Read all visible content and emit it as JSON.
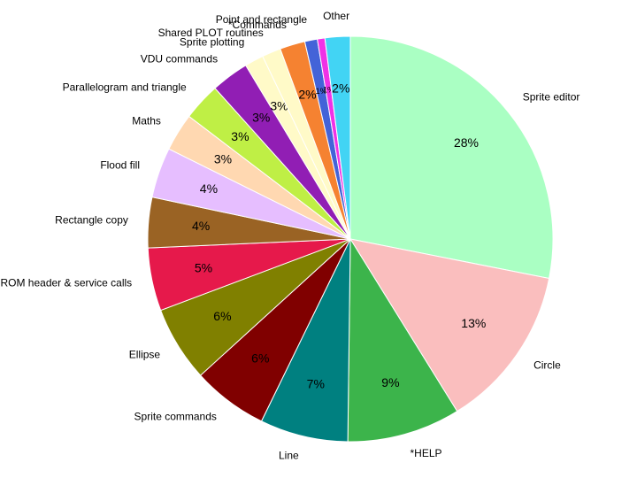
{
  "chart_data": {
    "type": "pie",
    "title": "",
    "start_angle_deg": 90,
    "direction": "clockwise",
    "slices": [
      {
        "label": "Sprite editor",
        "value": 28,
        "pct_label": "28%",
        "color": "#aaffc3"
      },
      {
        "label": "Circle",
        "value": 13,
        "pct_label": "13%",
        "color": "#fabebe"
      },
      {
        "label": "*HELP",
        "value": 9,
        "pct_label": "9%",
        "color": "#3cb44b"
      },
      {
        "label": "Line",
        "value": 7,
        "pct_label": "7%",
        "color": "#008080"
      },
      {
        "label": "Sprite commands",
        "value": 6,
        "pct_label": "6%",
        "color": "#800000"
      },
      {
        "label": "Ellipse",
        "value": 6,
        "pct_label": "6%",
        "color": "#808000"
      },
      {
        "label": "ROM header & service calls",
        "value": 5,
        "pct_label": "5%",
        "color": "#e6194b"
      },
      {
        "label": "Rectangle copy",
        "value": 4,
        "pct_label": "4%",
        "color": "#9a6324"
      },
      {
        "label": "Flood fill",
        "value": 4,
        "pct_label": "4%",
        "color": "#e6beff"
      },
      {
        "label": "Maths",
        "value": 3,
        "pct_label": "3%",
        "color": "#ffd8b1"
      },
      {
        "label": "Parallelogram and triangle",
        "value": 3,
        "pct_label": "3%",
        "color": "#bfef45"
      },
      {
        "label": "VDU commands",
        "value": 3,
        "pct_label": "3%",
        "color": "#911eb4"
      },
      {
        "label": "Sprite plotting",
        "value": 1.5,
        "pct_label": "3%",
        "color": "#fffac8"
      },
      {
        "label": "Shared PLOT routines",
        "value": 1.5,
        "pct_label": "",
        "color": "#fffac8"
      },
      {
        "label": "*Commands",
        "value": 2,
        "pct_label": "2%",
        "color": "#f58231"
      },
      {
        "label": "Point and rectangle",
        "value": 1,
        "pct_label": "1%",
        "color": "#4363d8"
      },
      {
        "label": "",
        "value": 0.6,
        "pct_label": "1%",
        "color": "#f032e6"
      },
      {
        "label": "Other",
        "value": 2,
        "pct_label": "2%",
        "color": "#42d4f4"
      }
    ]
  }
}
